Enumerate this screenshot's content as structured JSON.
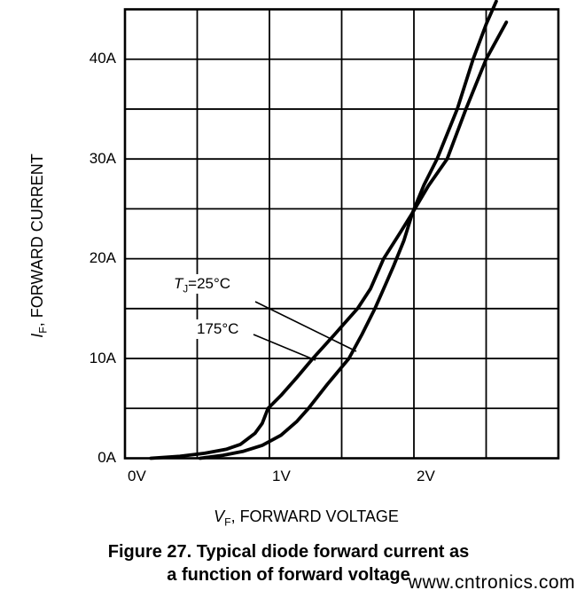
{
  "figure": {
    "caption_line1": "Figure 27. Typical diode forward current as",
    "caption_line2": "a function of forward voltage",
    "watermark_text": "www.cntronics.com",
    "watermark_color": "#bfe4bf",
    "line_color": "#000000",
    "background_color": "#ffffff"
  },
  "chart_data": {
    "type": "line",
    "title": "",
    "xlabel": {
      "symbol": "V",
      "subscript": "F",
      "rest": ", FORWARD VOLTAGE"
    },
    "ylabel": {
      "symbol": "I",
      "subscript": "F",
      "rest": ", FORWARD CURRENT"
    },
    "xlim": [
      0,
      3
    ],
    "ylim": [
      0,
      45
    ],
    "x_grid_step": 0.5,
    "y_grid_step": 5,
    "grid": "on",
    "legend_position": "inline-annotations",
    "x_ticks": [
      {
        "v": 0,
        "label": "0V"
      },
      {
        "v": 1,
        "label": "1V"
      },
      {
        "v": 2,
        "label": "2V"
      }
    ],
    "y_ticks": [
      {
        "v": 0,
        "label": "0A"
      },
      {
        "v": 10,
        "label": "10A"
      },
      {
        "v": 20,
        "label": "20A"
      },
      {
        "v": 30,
        "label": "30A"
      },
      {
        "v": 40,
        "label": "40A"
      }
    ],
    "crossover_point": {
      "v": 1.99,
      "i": 24.7
    },
    "series": [
      {
        "name": "TJ=25C",
        "label": {
          "prefix": "T",
          "sub": "J",
          "suffix": "=25°C"
        },
        "points": [
          [
            0.52,
            0
          ],
          [
            0.68,
            0.3
          ],
          [
            0.82,
            0.7
          ],
          [
            0.95,
            1.3
          ],
          [
            1.08,
            2.3
          ],
          [
            1.19,
            3.7
          ],
          [
            1.27,
            5.0
          ],
          [
            1.4,
            7.4
          ],
          [
            1.55,
            10.0
          ],
          [
            1.64,
            12.4
          ],
          [
            1.73,
            15.0
          ],
          [
            1.8,
            17.3
          ],
          [
            1.86,
            19.3
          ],
          [
            1.93,
            21.8
          ],
          [
            1.99,
            24.6
          ],
          [
            2.07,
            27.4
          ],
          [
            2.16,
            30.0
          ],
          [
            2.3,
            35.0
          ],
          [
            2.41,
            40.0
          ],
          [
            2.5,
            43.5
          ],
          [
            2.57,
            45.8
          ]
        ]
      },
      {
        "name": "175C",
        "label": {
          "prefix": "",
          "sub": "",
          "suffix": "175°C"
        },
        "points": [
          [
            0.18,
            0
          ],
          [
            0.38,
            0.2
          ],
          [
            0.55,
            0.5
          ],
          [
            0.7,
            0.9
          ],
          [
            0.8,
            1.4
          ],
          [
            0.9,
            2.5
          ],
          [
            0.95,
            3.5
          ],
          [
            0.99,
            5.0
          ],
          [
            1.08,
            6.3
          ],
          [
            1.19,
            8.1
          ],
          [
            1.3,
            10.0
          ],
          [
            1.45,
            12.4
          ],
          [
            1.61,
            15.0
          ],
          [
            1.7,
            17.0
          ],
          [
            1.79,
            20.0
          ],
          [
            1.9,
            22.5
          ],
          [
            1.99,
            24.6
          ],
          [
            2.1,
            27.3
          ],
          [
            2.23,
            30.0
          ],
          [
            2.36,
            35.0
          ],
          [
            2.5,
            40.0
          ],
          [
            2.64,
            43.7
          ]
        ]
      }
    ]
  }
}
